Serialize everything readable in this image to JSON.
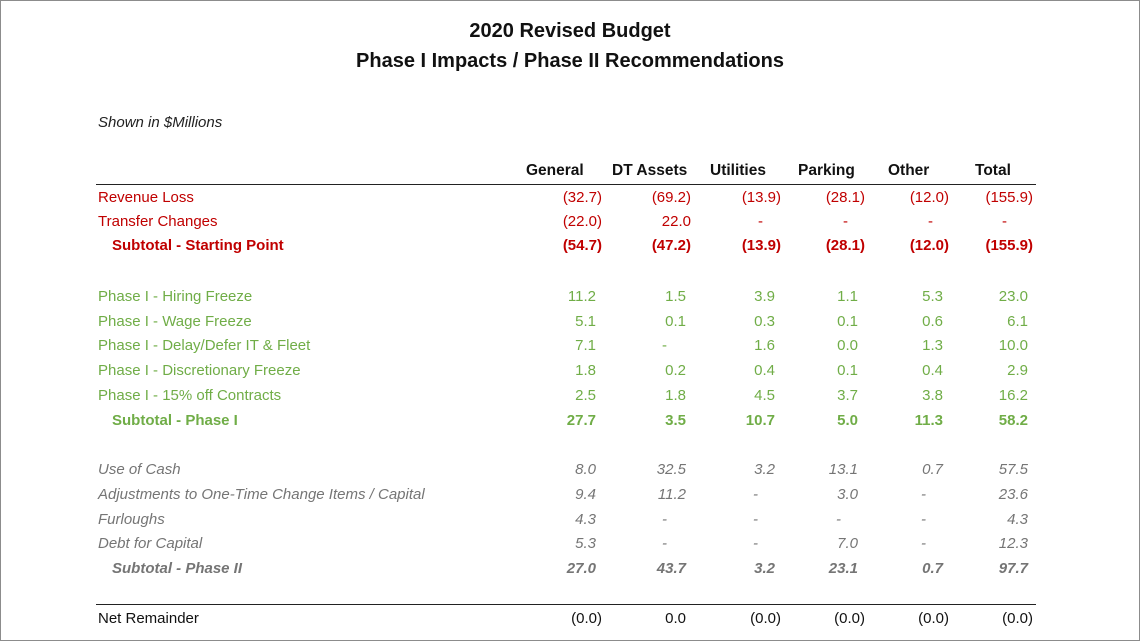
{
  "title_line1": "2020 Revised Budget",
  "title_line2": "Phase I Impacts / Phase II Recommendations",
  "units_note": "Shown in $Millions",
  "columns": [
    "General",
    "DT Assets",
    "Utilities",
    "Parking",
    "Other",
    "Total"
  ],
  "colors": {
    "red": "#c00000",
    "green": "#70ad47",
    "gray": "#757575"
  },
  "rows": [
    {
      "label": "Revenue Loss",
      "values": [
        "(32.7)",
        "(69.2)",
        "(13.9)",
        "(28.1)",
        "(12.0)",
        "(155.9)"
      ]
    },
    {
      "label": "Transfer Changes",
      "values": [
        "(22.0)",
        "22.0",
        "-",
        "-",
        "-",
        "-"
      ]
    },
    {
      "label": "Subtotal - Starting Point",
      "values": [
        "(54.7)",
        "(47.2)",
        "(13.9)",
        "(28.1)",
        "(12.0)",
        "(155.9)"
      ]
    },
    {
      "label": "Phase I - Hiring Freeze",
      "values": [
        "11.2",
        "1.5",
        "3.9",
        "1.1",
        "5.3",
        "23.0"
      ]
    },
    {
      "label": "Phase I - Wage Freeze",
      "values": [
        "5.1",
        "0.1",
        "0.3",
        "0.1",
        "0.6",
        "6.1"
      ]
    },
    {
      "label": "Phase I - Delay/Defer IT & Fleet",
      "values": [
        "7.1",
        "-",
        "1.6",
        "0.0",
        "1.3",
        "10.0"
      ]
    },
    {
      "label": "Phase I - Discretionary Freeze",
      "values": [
        "1.8",
        "0.2",
        "0.4",
        "0.1",
        "0.4",
        "2.9"
      ]
    },
    {
      "label": "Phase I - 15% off Contracts",
      "values": [
        "2.5",
        "1.8",
        "4.5",
        "3.7",
        "3.8",
        "16.2"
      ]
    },
    {
      "label": "Subtotal - Phase I",
      "values": [
        "27.7",
        "3.5",
        "10.7",
        "5.0",
        "11.3",
        "58.2"
      ]
    },
    {
      "label": "Use of Cash",
      "values": [
        "8.0",
        "32.5",
        "3.2",
        "13.1",
        "0.7",
        "57.5"
      ]
    },
    {
      "label": "Adjustments to One-Time Change Items / Capital",
      "values": [
        "9.4",
        "11.2",
        "-",
        "3.0",
        "-",
        "23.6"
      ]
    },
    {
      "label": "Furloughs",
      "values": [
        "4.3",
        "-",
        "-",
        "-",
        "-",
        "4.3"
      ]
    },
    {
      "label": "Debt for Capital",
      "values": [
        "5.3",
        "-",
        "-",
        "7.0",
        "-",
        "12.3"
      ]
    },
    {
      "label": "Subtotal - Phase II",
      "values": [
        "27.0",
        "43.7",
        "3.2",
        "23.1",
        "0.7",
        "97.7"
      ]
    },
    {
      "label": "Net Remainder",
      "values": [
        "(0.0)",
        "0.0",
        "(0.0)",
        "(0.0)",
        "(0.0)",
        "(0.0)"
      ]
    }
  ]
}
